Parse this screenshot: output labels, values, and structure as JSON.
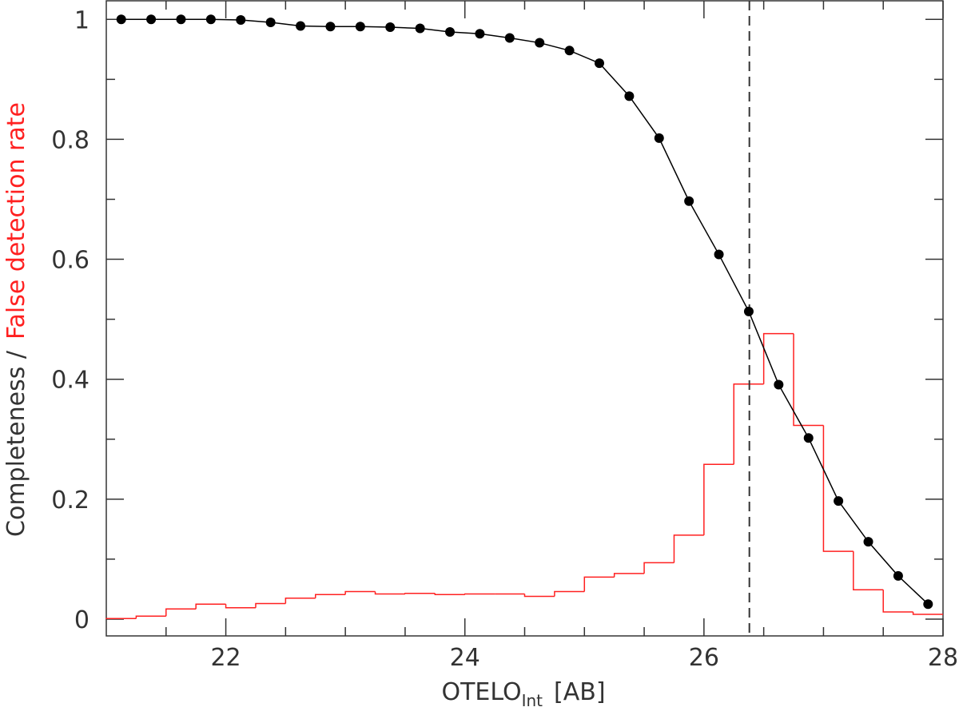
{
  "chart_data": {
    "type": "line",
    "xlabel": {
      "main": "OTELO",
      "sub": "Int",
      "unit": "[AB]"
    },
    "ylabel": {
      "first": "Completeness /",
      "second": "False detection rate",
      "second_color": "#ff2020"
    },
    "xlim": [
      21,
      28
    ],
    "ylim": [
      -0.028,
      1.031
    ],
    "xticks": [
      22,
      24,
      26,
      28
    ],
    "xminorticks": [
      21.5,
      22.5,
      23,
      23.5,
      24.5,
      25,
      25.5,
      26.5,
      27,
      27.5
    ],
    "yticks": [
      0,
      0.2,
      0.4,
      0.6,
      0.8,
      1
    ],
    "yminorticks": [
      0.1,
      0.3,
      0.5,
      0.7,
      0.9
    ],
    "x": [
      21.125,
      21.375,
      21.625,
      21.875,
      22.125,
      22.375,
      22.625,
      22.875,
      23.125,
      23.375,
      23.625,
      23.875,
      24.125,
      24.375,
      24.625,
      24.875,
      25.125,
      25.375,
      25.625,
      25.875,
      26.125,
      26.375,
      26.625,
      26.875,
      27.125,
      27.375,
      27.625,
      27.875
    ],
    "series": [
      {
        "color": "#000000",
        "values": [
          1.0,
          1.0,
          1.0,
          1.0,
          0.999,
          0.995,
          0.989,
          0.988,
          0.988,
          0.987,
          0.985,
          0.979,
          0.976,
          0.969,
          0.961,
          0.948,
          0.927,
          0.872,
          0.802,
          0.697,
          0.608,
          0.513,
          0.391,
          0.302,
          0.197,
          0.129,
          0.072,
          0.025
        ]
      }
    ],
    "histogram": {
      "color": "#ff2020",
      "bins": [
        21,
        21.25,
        21.5,
        21.75,
        22,
        22.25,
        22.5,
        22.75,
        23,
        23.25,
        23.5,
        23.75,
        24,
        24.25,
        24.5,
        24.75,
        25,
        25.25,
        25.5,
        25.75,
        26,
        26.25,
        26.5,
        26.75,
        27,
        27.25,
        27.5,
        27.75,
        28
      ],
      "counts": [
        0.001,
        0.005,
        0.017,
        0.025,
        0.019,
        0.026,
        0.035,
        0.041,
        0.046,
        0.042,
        0.043,
        0.041,
        0.042,
        0.042,
        0.038,
        0.046,
        0.07,
        0.076,
        0.094,
        0.14,
        0.258,
        0.392,
        0.476,
        0.323,
        0.113,
        0.049,
        0.012,
        0.008
      ]
    },
    "vline": {
      "value": 26.38,
      "style": "dashed",
      "color": "#333333"
    }
  }
}
